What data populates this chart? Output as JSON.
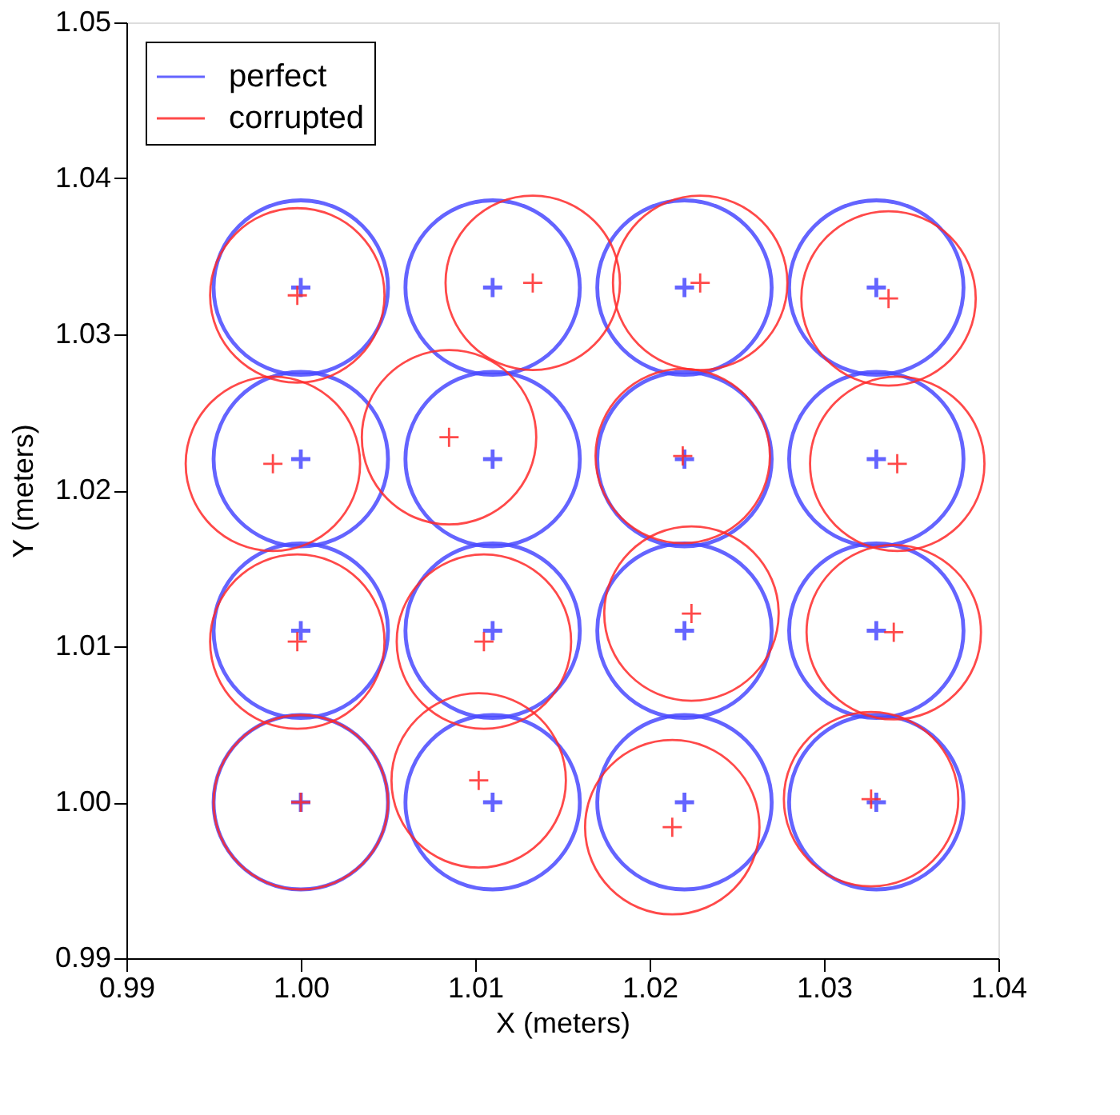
{
  "chart_data": {
    "type": "scatter",
    "xlabel": "X (meters)",
    "ylabel": "Y (meters)",
    "legend": "top left",
    "grid": false,
    "xlim": [
      0.99,
      1.04
    ],
    "ylim": [
      0.99,
      1.05
    ],
    "xticks": [
      {
        "value": 0.99,
        "label": "0.99"
      },
      {
        "value": 1.0,
        "label": "1.00"
      },
      {
        "value": 1.01,
        "label": "1.01"
      },
      {
        "value": 1.02,
        "label": "1.02"
      },
      {
        "value": 1.03,
        "label": "1.03"
      },
      {
        "value": 1.04,
        "label": "1.04"
      }
    ],
    "yticks": [
      {
        "value": 0.99,
        "label": "0.99"
      },
      {
        "value": 1.0,
        "label": "1.00"
      },
      {
        "value": 1.01,
        "label": "1.01"
      },
      {
        "value": 1.02,
        "label": "1.02"
      },
      {
        "value": 1.03,
        "label": "1.03"
      },
      {
        "value": 1.04,
        "label": "1.04"
      },
      {
        "value": 1.05,
        "label": "1.05"
      }
    ],
    "series": [
      {
        "name": "perfect",
        "color": "#4a4aff",
        "x": [
          1.0,
          1.011,
          1.022,
          1.033,
          1.0,
          1.011,
          1.022,
          1.033,
          1.0,
          1.011,
          1.022,
          1.033,
          1.0,
          1.011,
          1.022,
          1.033
        ],
        "values": [
          1.033,
          1.033,
          1.033,
          1.033,
          1.022,
          1.022,
          1.022,
          1.022,
          1.011,
          1.011,
          1.011,
          1.011,
          1.0,
          1.0,
          1.0,
          1.0
        ]
      },
      {
        "name": "corrupted",
        "color": "#ff2a2a",
        "x": [
          0.9998,
          1.0133,
          1.0229,
          1.0337,
          0.9984,
          1.0085,
          1.0219,
          1.0342,
          0.9998,
          1.0105,
          1.0224,
          1.034,
          1.0,
          1.0102,
          1.0213,
          1.0327
        ],
        "values": [
          1.0325,
          1.0333,
          1.0333,
          1.0323,
          1.0217,
          1.0234,
          1.0222,
          1.0217,
          1.0103,
          1.0103,
          1.0121,
          1.0109,
          1.0,
          1.0014,
          0.9984,
          1.0002
        ]
      }
    ]
  }
}
